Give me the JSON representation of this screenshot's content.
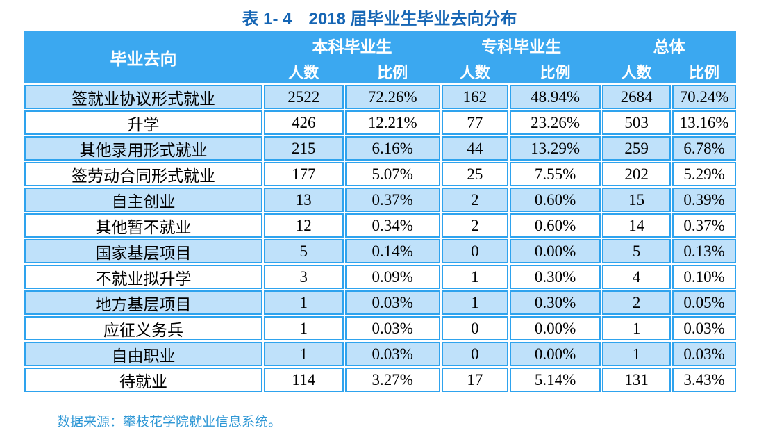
{
  "page": {
    "title": "表 1- 4　2018 届毕业生毕业去向分布",
    "source_note": "数据来源：攀枝花学院就业信息系统。"
  },
  "colors": {
    "header_bg": "#3BA8F0",
    "cell_border": "#2EA3EE",
    "row_alt_bg": "#BFE1FA",
    "title_text": "#1565B4",
    "source_text": "#2E97D5",
    "header_text": "#FFFFFF"
  },
  "table": {
    "corner_header": "毕业去向",
    "groups": [
      {
        "label": "本科毕业生"
      },
      {
        "label": "专科毕业生"
      },
      {
        "label": "总体"
      }
    ],
    "sub_headers": [
      "人数",
      "比例"
    ],
    "rows": [
      {
        "cells": [
          "签就业协议形式就业",
          "2522",
          "72.26%",
          "162",
          "48.94%",
          "2684",
          "70.24%"
        ]
      },
      {
        "cells": [
          "升学",
          "426",
          "12.21%",
          "77",
          "23.26%",
          "503",
          "13.16%"
        ]
      },
      {
        "cells": [
          "其他录用形式就业",
          "215",
          "6.16%",
          "44",
          "13.29%",
          "259",
          "6.78%"
        ]
      },
      {
        "cells": [
          "签劳动合同形式就业",
          "177",
          "5.07%",
          "25",
          "7.55%",
          "202",
          "5.29%"
        ]
      },
      {
        "cells": [
          "自主创业",
          "13",
          "0.37%",
          "2",
          "0.60%",
          "15",
          "0.39%"
        ]
      },
      {
        "cells": [
          "其他暂不就业",
          "12",
          "0.34%",
          "2",
          "0.60%",
          "14",
          "0.37%"
        ]
      },
      {
        "cells": [
          "国家基层项目",
          "5",
          "0.14%",
          "0",
          "0.00%",
          "5",
          "0.13%"
        ]
      },
      {
        "cells": [
          "不就业拟升学",
          "3",
          "0.09%",
          "1",
          "0.30%",
          "4",
          "0.10%"
        ]
      },
      {
        "cells": [
          "地方基层项目",
          "1",
          "0.03%",
          "1",
          "0.30%",
          "2",
          "0.05%"
        ]
      },
      {
        "cells": [
          "应征义务兵",
          "1",
          "0.03%",
          "0",
          "0.00%",
          "1",
          "0.03%"
        ]
      },
      {
        "cells": [
          "自由职业",
          "1",
          "0.03%",
          "0",
          "0.00%",
          "1",
          "0.03%"
        ]
      },
      {
        "cells": [
          "待就业",
          "114",
          "3.27%",
          "17",
          "5.14%",
          "131",
          "3.43%"
        ]
      }
    ]
  }
}
